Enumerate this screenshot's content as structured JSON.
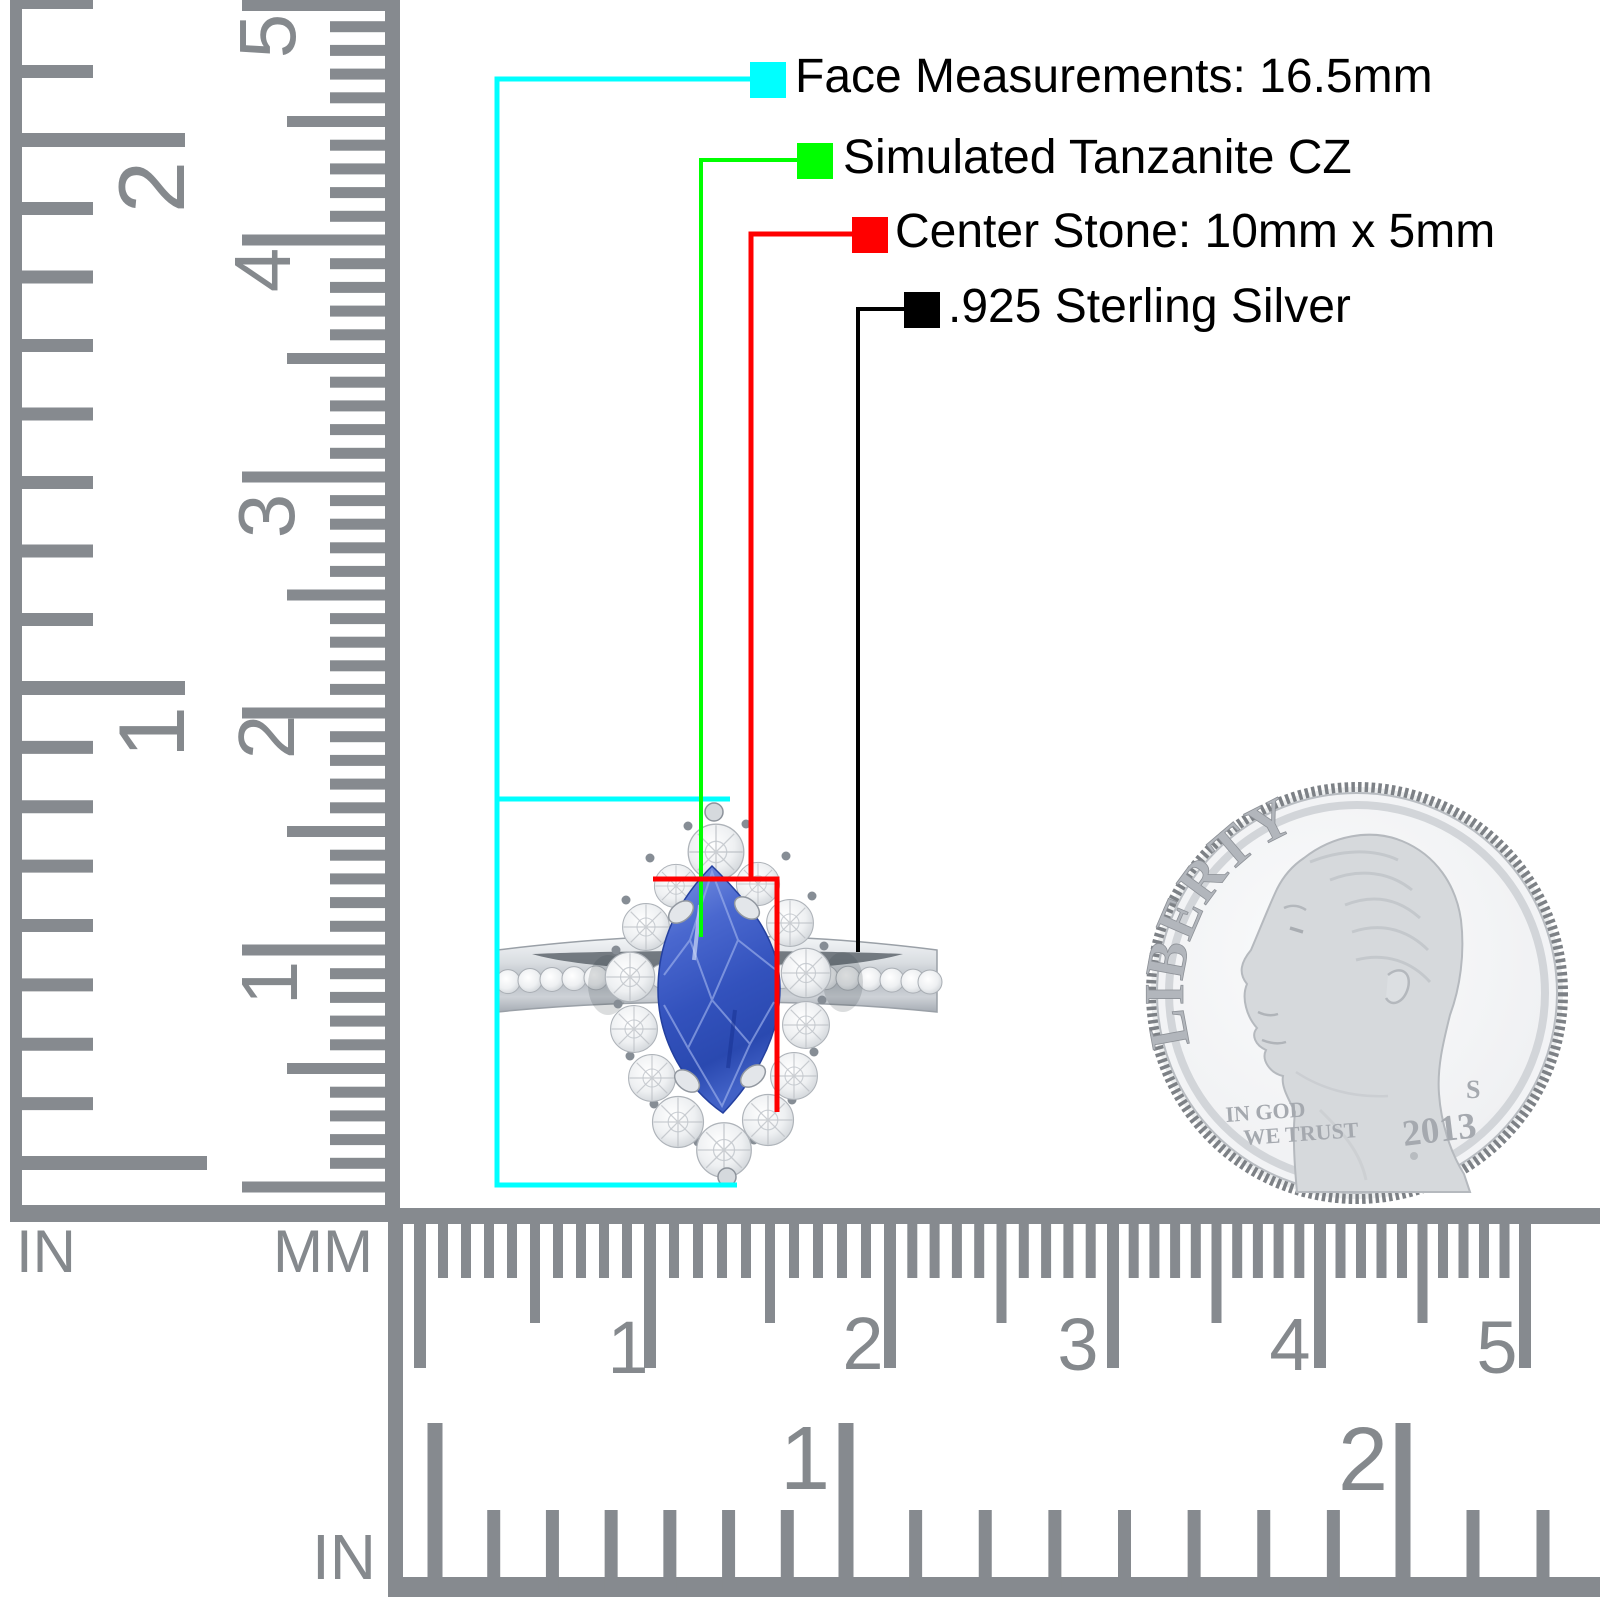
{
  "annotations": [
    {
      "label": "Face Measurements: 16.5mm",
      "color": "#00ffff"
    },
    {
      "label": "Simulated Tanzanite CZ",
      "color": "#00ff00"
    },
    {
      "label": "Center Stone: 10mm x 5mm",
      "color": "#ff0000"
    },
    {
      "label": ".925 Sterling Silver",
      "color": "#000000"
    }
  ],
  "rulers": {
    "left_inch": {
      "unit": "IN",
      "labels": [
        "2",
        "1"
      ]
    },
    "left_mm": {
      "unit": "MM",
      "labels": [
        "5",
        "4",
        "3",
        "2",
        "1"
      ]
    },
    "bottom_mm": {
      "labels": [
        "1",
        "2",
        "3",
        "4",
        "5"
      ]
    },
    "bottom_inch": {
      "unit": "IN",
      "labels": [
        "1",
        "2"
      ]
    }
  },
  "coin": {
    "legend": "LIBERTY",
    "motto_line1": "IN GOD",
    "motto_line2": "WE TRUST",
    "mint_mark": "S",
    "year": "2013"
  },
  "colors": {
    "ruler_ink": "#868a8f",
    "annotation_text": "#000000",
    "stone_blue": "#3f5fc5",
    "metal_silver": "#c9cdd2",
    "coin_relief": "#adb1b7"
  }
}
